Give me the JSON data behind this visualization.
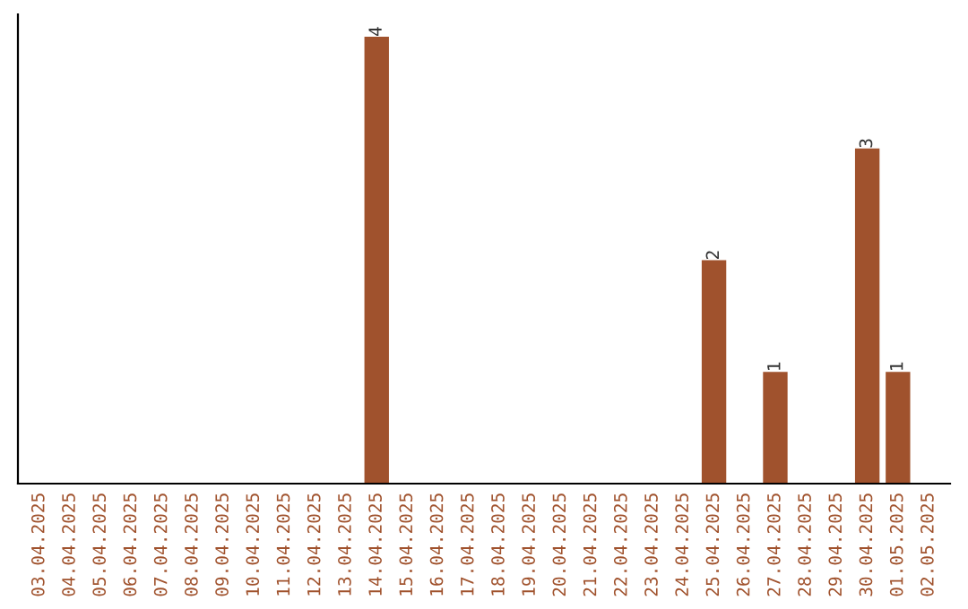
{
  "chart_data": {
    "type": "bar",
    "categories": [
      "03.04.2025",
      "04.04.2025",
      "05.04.2025",
      "06.04.2025",
      "07.04.2025",
      "08.04.2025",
      "09.04.2025",
      "10.04.2025",
      "11.04.2025",
      "12.04.2025",
      "13.04.2025",
      "14.04.2025",
      "15.04.2025",
      "16.04.2025",
      "17.04.2025",
      "18.04.2025",
      "19.04.2025",
      "20.04.2025",
      "21.04.2025",
      "22.04.2025",
      "23.04.2025",
      "24.04.2025",
      "25.04.2025",
      "26.04.2025",
      "27.04.2025",
      "28.04.2025",
      "29.04.2025",
      "30.04.2025",
      "01.05.2025",
      "02.05.2025"
    ],
    "values": [
      0,
      0,
      0,
      0,
      0,
      0,
      0,
      0,
      0,
      0,
      0,
      4,
      0,
      0,
      0,
      0,
      0,
      0,
      0,
      0,
      0,
      0,
      2,
      0,
      1,
      0,
      0,
      3,
      1,
      0
    ],
    "color": "#a0522d",
    "value_labels": [
      null,
      null,
      null,
      null,
      null,
      null,
      null,
      null,
      null,
      null,
      null,
      "4",
      null,
      null,
      null,
      null,
      null,
      null,
      null,
      null,
      null,
      null,
      "2",
      null,
      "1",
      null,
      null,
      "3",
      "1",
      null
    ],
    "tick_labels": "x",
    "grid": false,
    "legend": false
  }
}
